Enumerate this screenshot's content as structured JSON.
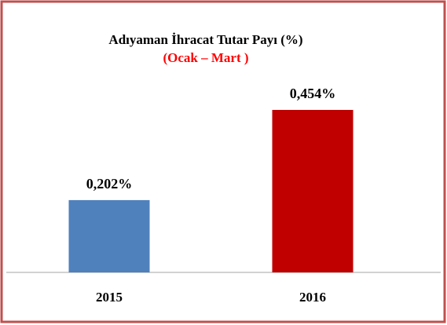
{
  "chart_data": {
    "type": "bar",
    "title": "Adıyaman İhracat Tutar Payı (%)",
    "subtitle": "(Ocak – Mart )",
    "categories": [
      "2015",
      "2016"
    ],
    "values": [
      0.202,
      0.454
    ],
    "value_labels": [
      "0,202%",
      "0,454%"
    ],
    "colors": [
      "#4f81bd",
      "#c00000"
    ]
  }
}
